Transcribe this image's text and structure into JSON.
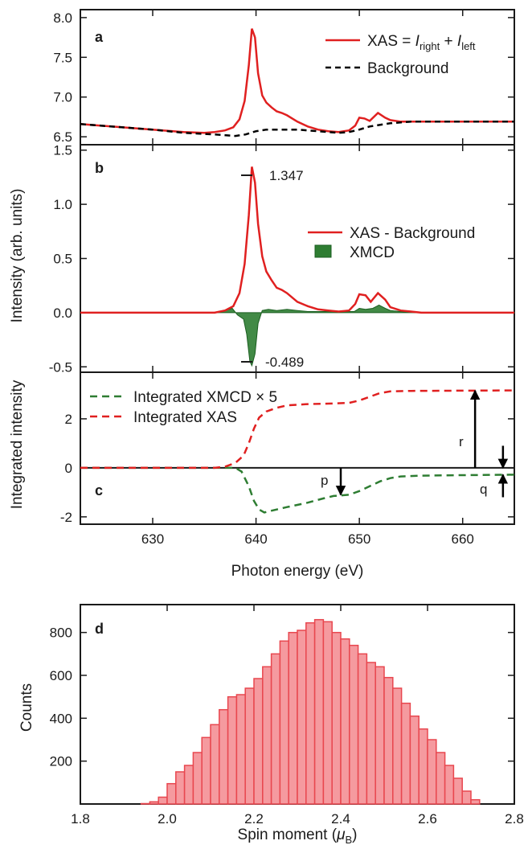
{
  "chart_data": [
    {
      "panel": "a",
      "type": "line",
      "ylim": [
        6.4,
        8.1
      ],
      "yticks": [
        "6.5",
        "7.0",
        "7.5",
        "8.0"
      ],
      "ytick_values": [
        6.5,
        7.0,
        7.5,
        8.0
      ],
      "legend": {
        "xas_formula": "XAS = ",
        "I": "I",
        "right": "right",
        "plus": " + ",
        "left": "left",
        "background": "Background"
      },
      "series": [
        {
          "name": "XAS = Iright + Ileft",
          "color": "#e02020",
          "points": [
            [
              623,
              6.66
            ],
            [
              627,
              6.62
            ],
            [
              630,
              6.59
            ],
            [
              633,
              6.56
            ],
            [
              635,
              6.55
            ],
            [
              636,
              6.56
            ],
            [
              637,
              6.58
            ],
            [
              637.8,
              6.62
            ],
            [
              638.4,
              6.72
            ],
            [
              638.9,
              6.95
            ],
            [
              639.3,
              7.4
            ],
            [
              639.6,
              7.86
            ],
            [
              639.9,
              7.75
            ],
            [
              640.2,
              7.3
            ],
            [
              640.6,
              7.02
            ],
            [
              641,
              6.93
            ],
            [
              641.5,
              6.87
            ],
            [
              642,
              6.82
            ],
            [
              642.5,
              6.8
            ],
            [
              643,
              6.77
            ],
            [
              644,
              6.69
            ],
            [
              645,
              6.63
            ],
            [
              646,
              6.59
            ],
            [
              647,
              6.57
            ],
            [
              648,
              6.56
            ],
            [
              649,
              6.58
            ],
            [
              649.6,
              6.64
            ],
            [
              650,
              6.74
            ],
            [
              650.5,
              6.73
            ],
            [
              651,
              6.7
            ],
            [
              651.8,
              6.8
            ],
            [
              652.5,
              6.74
            ],
            [
              653,
              6.71
            ],
            [
              654,
              6.69
            ],
            [
              655,
              6.69
            ],
            [
              660,
              6.69
            ],
            [
              665,
              6.69
            ]
          ]
        },
        {
          "name": "Background",
          "color": "#000000",
          "dash": true,
          "points": [
            [
              623,
              6.66
            ],
            [
              627,
              6.62
            ],
            [
              630,
              6.59
            ],
            [
              633,
              6.55
            ],
            [
              636,
              6.53
            ],
            [
              638,
              6.51
            ],
            [
              639,
              6.53
            ],
            [
              640,
              6.57
            ],
            [
              641,
              6.59
            ],
            [
              644,
              6.59
            ],
            [
              646,
              6.57
            ],
            [
              648,
              6.55
            ],
            [
              649,
              6.56
            ],
            [
              650,
              6.59
            ],
            [
              651,
              6.63
            ],
            [
              653,
              6.67
            ],
            [
              655,
              6.69
            ],
            [
              660,
              6.69
            ],
            [
              665,
              6.69
            ]
          ]
        }
      ]
    },
    {
      "panel": "b",
      "type": "line",
      "ylim": [
        -0.55,
        1.55
      ],
      "yticks": [
        "-0.5",
        "0.0",
        "0.5",
        "1.0",
        "1.5"
      ],
      "ytick_values": [
        -0.5,
        0.0,
        0.5,
        1.0,
        1.5
      ],
      "annotations": {
        "max_label": "1.347",
        "min_label": "-0.489"
      },
      "legend": {
        "line": "XAS - Background",
        "fill": "XMCD"
      },
      "series": [
        {
          "name": "XAS - Background",
          "color": "#e02020",
          "points": [
            [
              623,
              0.0
            ],
            [
              632,
              0.0
            ],
            [
              636,
              0.0
            ],
            [
              637,
              0.02
            ],
            [
              637.8,
              0.06
            ],
            [
              638.4,
              0.18
            ],
            [
              638.9,
              0.45
            ],
            [
              639.3,
              0.9
            ],
            [
              639.6,
              1.347
            ],
            [
              639.9,
              1.2
            ],
            [
              640.2,
              0.82
            ],
            [
              640.6,
              0.52
            ],
            [
              641,
              0.38
            ],
            [
              641.5,
              0.3
            ],
            [
              642,
              0.23
            ],
            [
              642.5,
              0.21
            ],
            [
              643,
              0.18
            ],
            [
              644,
              0.1
            ],
            [
              645,
              0.06
            ],
            [
              646,
              0.03
            ],
            [
              647,
              0.02
            ],
            [
              648,
              0.01
            ],
            [
              649,
              0.02
            ],
            [
              649.6,
              0.08
            ],
            [
              650,
              0.17
            ],
            [
              650.6,
              0.16
            ],
            [
              651.1,
              0.1
            ],
            [
              651.8,
              0.18
            ],
            [
              652.5,
              0.12
            ],
            [
              653,
              0.05
            ],
            [
              654,
              0.02
            ],
            [
              656,
              0.0
            ],
            [
              665,
              0.0
            ]
          ]
        },
        {
          "name": "XMCD",
          "color": "#2e7d32",
          "fill": "#2e7d32",
          "points": [
            [
              623,
              0.0
            ],
            [
              636,
              0.0
            ],
            [
              637,
              0.02
            ],
            [
              637.7,
              0.04
            ],
            [
              638.2,
              -0.02
            ],
            [
              638.8,
              -0.06
            ],
            [
              639.1,
              -0.2
            ],
            [
              639.4,
              -0.45
            ],
            [
              639.6,
              -0.489
            ],
            [
              639.9,
              -0.38
            ],
            [
              640.2,
              -0.1
            ],
            [
              640.6,
              0.02
            ],
            [
              641.2,
              0.03
            ],
            [
              642,
              0.02
            ],
            [
              643,
              0.03
            ],
            [
              644,
              0.02
            ],
            [
              645,
              0.01
            ],
            [
              646,
              0.01
            ],
            [
              648,
              0.01
            ],
            [
              649.5,
              0.01
            ],
            [
              650,
              0.04
            ],
            [
              650.6,
              0.03
            ],
            [
              651.3,
              0.04
            ],
            [
              651.9,
              0.07
            ],
            [
              652.5,
              0.04
            ],
            [
              653,
              0.02
            ],
            [
              654,
              0.01
            ],
            [
              655,
              0.0
            ],
            [
              665,
              0.0
            ]
          ]
        }
      ]
    },
    {
      "panel": "c",
      "type": "line",
      "ylim": [
        -2.3,
        3.9
      ],
      "yticks": [
        "-2",
        "0",
        "2"
      ],
      "ytick_values": [
        -2,
        0,
        2
      ],
      "xlim": [
        623,
        665
      ],
      "xticks": [
        "630",
        "640",
        "650",
        "660"
      ],
      "xtick_values": [
        630,
        640,
        650,
        660
      ],
      "xlabel": "Photon energy (eV)",
      "shared_ylabel": "Intensity (arb. units)",
      "ylabel": "Integrated intensity",
      "markers": {
        "r": "r",
        "p": "p",
        "q": "q",
        "r_x": 661.2,
        "r_y": 3.15,
        "p_x": 648.2,
        "p_y": -1.1,
        "q_x": 663.9,
        "q_y": -0.28
      },
      "series": [
        {
          "name": "Integrated XMCD × 5",
          "color": "#2e7d32",
          "dash": true,
          "points": [
            [
              623,
              0.0
            ],
            [
              637,
              0.0
            ],
            [
              638,
              0.0
            ],
            [
              638.6,
              -0.15
            ],
            [
              639.3,
              -0.75
            ],
            [
              639.8,
              -1.35
            ],
            [
              640.3,
              -1.7
            ],
            [
              640.8,
              -1.82
            ],
            [
              641.5,
              -1.75
            ],
            [
              643,
              -1.6
            ],
            [
              645,
              -1.42
            ],
            [
              646.5,
              -1.25
            ],
            [
              647.5,
              -1.15
            ],
            [
              649,
              -1.1
            ],
            [
              650,
              -0.95
            ],
            [
              651,
              -0.75
            ],
            [
              652,
              -0.55
            ],
            [
              653,
              -0.42
            ],
            [
              654,
              -0.35
            ],
            [
              656,
              -0.32
            ],
            [
              660,
              -0.3
            ],
            [
              665,
              -0.28
            ]
          ]
        },
        {
          "name": "Integrated XAS",
          "color": "#e02020",
          "dash": true,
          "points": [
            [
              623,
              0.0
            ],
            [
              636,
              0.0
            ],
            [
              637,
              0.05
            ],
            [
              638,
              0.2
            ],
            [
              638.8,
              0.5
            ],
            [
              639.3,
              1.0
            ],
            [
              639.8,
              1.6
            ],
            [
              640.3,
              2.05
            ],
            [
              641,
              2.3
            ],
            [
              642,
              2.45
            ],
            [
              643,
              2.55
            ],
            [
              645,
              2.6
            ],
            [
              647,
              2.62
            ],
            [
              649,
              2.65
            ],
            [
              650,
              2.75
            ],
            [
              651,
              2.9
            ],
            [
              652,
              3.05
            ],
            [
              653,
              3.12
            ],
            [
              655,
              3.14
            ],
            [
              660,
              3.15
            ],
            [
              665,
              3.16
            ]
          ]
        }
      ]
    },
    {
      "panel": "d",
      "type": "bar",
      "xlim": [
        1.8,
        2.8
      ],
      "ylim": [
        0,
        930
      ],
      "xticks": [
        "1.8",
        "2.0",
        "2.2",
        "2.4",
        "2.6",
        "2.8"
      ],
      "xtick_values": [
        1.8,
        2.0,
        2.2,
        2.4,
        2.6,
        2.8
      ],
      "yticks": [
        "200",
        "400",
        "600",
        "800"
      ],
      "ytick_values": [
        200,
        400,
        600,
        800
      ],
      "ylabel": "Counts",
      "xlabel_prefix": "Spin moment (",
      "xlabel_mu": "μ",
      "xlabel_sub": "B",
      "xlabel_suffix": ")",
      "bin_width": 0.02,
      "bin_start": 1.94,
      "color": "#e8474f",
      "fill": "#f59a9f",
      "values": [
        2,
        10,
        32,
        95,
        150,
        180,
        240,
        310,
        370,
        440,
        500,
        510,
        540,
        585,
        640,
        700,
        760,
        800,
        810,
        845,
        860,
        850,
        800,
        770,
        740,
        700,
        660,
        640,
        590,
        540,
        470,
        410,
        350,
        300,
        240,
        180,
        120,
        60,
        20
      ]
    }
  ]
}
